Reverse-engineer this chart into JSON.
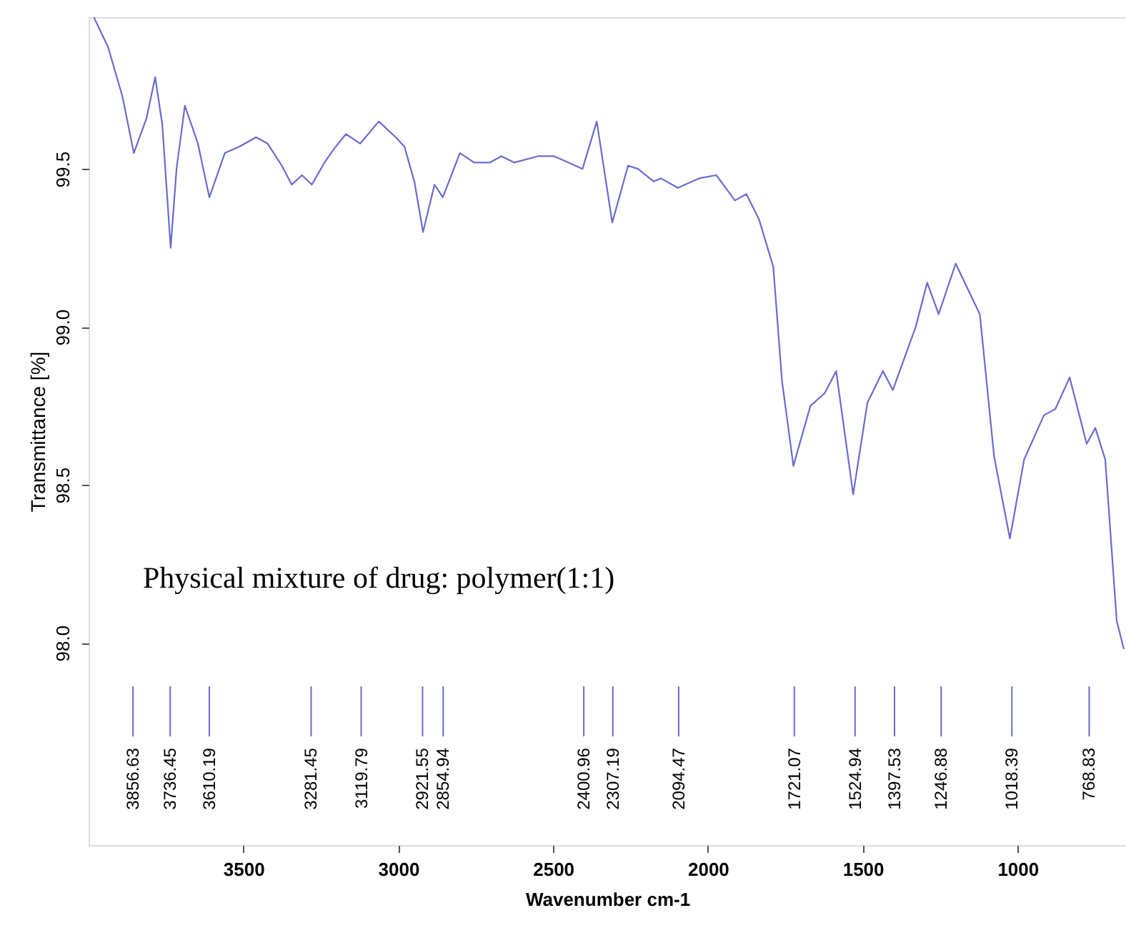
{
  "chart_data": {
    "type": "line",
    "xlabel": "Wavenumber cm-1",
    "ylabel": "Transmittance [%]",
    "xlim": [
      4000,
      650
    ],
    "ylim": [
      97.36,
      99.98
    ],
    "xticks": [
      3500,
      3000,
      2500,
      2000,
      1500,
      1000
    ],
    "yticks": [
      {
        "value": 98,
        "label": "98.0"
      },
      98.5,
      {
        "value": 99,
        "label": "99.0"
      },
      99.5
    ],
    "grid": false,
    "marker": "none",
    "line_style": "solid",
    "series": [
      {
        "color": "#6b6bcf",
        "x": [
          3983,
          3937,
          3891,
          3854,
          3813,
          3785,
          3762,
          3735,
          3716,
          3689,
          3647,
          3610,
          3560,
          3514,
          3459,
          3422,
          3376,
          3344,
          3311,
          3279,
          3238,
          3210,
          3169,
          3123,
          3063,
          3008,
          2980,
          2948,
          2920,
          2883,
          2856,
          2801,
          2755,
          2704,
          2667,
          2626,
          2548,
          2497,
          2451,
          2405,
          2359,
          2309,
          2258,
          2226,
          2175,
          2152,
          2097,
          2028,
          1973,
          1913,
          1876,
          1835,
          1789,
          1761,
          1724,
          1669,
          1623,
          1586,
          1531,
          1485,
          1435,
          1403,
          1329,
          1292,
          1255,
          1200,
          1122,
          1076,
          1025,
          979,
          915,
          878,
          832,
          777,
          749,
          717,
          680,
          657
        ],
        "values": [
          99.98,
          99.885,
          99.73,
          99.55,
          99.66,
          99.79,
          99.64,
          99.25,
          99.5,
          99.7,
          99.58,
          99.41,
          99.55,
          99.57,
          99.6,
          99.58,
          99.51,
          99.45,
          99.48,
          99.45,
          99.52,
          99.56,
          99.61,
          99.58,
          99.65,
          99.6,
          99.57,
          99.46,
          99.3,
          99.45,
          99.41,
          99.55,
          99.52,
          99.52,
          99.54,
          99.52,
          99.54,
          99.54,
          99.52,
          99.5,
          99.65,
          99.33,
          99.51,
          99.5,
          99.46,
          99.47,
          99.44,
          99.47,
          99.48,
          99.4,
          99.42,
          99.34,
          99.19,
          98.83,
          98.56,
          98.75,
          98.79,
          98.86,
          98.47,
          98.76,
          98.86,
          98.8,
          99.0,
          99.14,
          99.04,
          99.2,
          99.04,
          98.59,
          98.33,
          98.58,
          98.72,
          98.74,
          98.84,
          98.63,
          98.68,
          98.58,
          98.07,
          97.98
        ]
      }
    ],
    "annotations": [
      "Physical mixture of drug: polymer(1:1)"
    ],
    "ref_lines": [
      {
        "axis": "x",
        "value": 3856.63,
        "label": "3856.63"
      },
      {
        "axis": "x",
        "value": 3736.45,
        "label": "3736.45"
      },
      {
        "axis": "x",
        "value": 3610.19,
        "label": "3610.19"
      },
      {
        "axis": "x",
        "value": 3281.45,
        "label": "3281.45"
      },
      {
        "axis": "x",
        "value": 3119.79,
        "label": "3119.79"
      },
      {
        "axis": "x",
        "value": 2921.55,
        "label": "2921.55"
      },
      {
        "axis": "x",
        "value": 2854.94,
        "label": "2854.94"
      },
      {
        "axis": "x",
        "value": 2400.96,
        "label": "2400.96"
      },
      {
        "axis": "x",
        "value": 2307.19,
        "label": "2307.19"
      },
      {
        "axis": "x",
        "value": 2094.47,
        "label": "2094.47"
      },
      {
        "axis": "x",
        "value": 1721.07,
        "label": "1721.07"
      },
      {
        "axis": "x",
        "value": 1524.94,
        "label": "1524.94"
      },
      {
        "axis": "x",
        "value": 1397.53,
        "label": "1397.53"
      },
      {
        "axis": "x",
        "value": 1246.88,
        "label": "1246.88"
      },
      {
        "axis": "x",
        "value": 1018.39,
        "label": "1018.39"
      },
      {
        "axis": "x",
        "value": 768.83,
        "label": "768.83"
      }
    ]
  }
}
